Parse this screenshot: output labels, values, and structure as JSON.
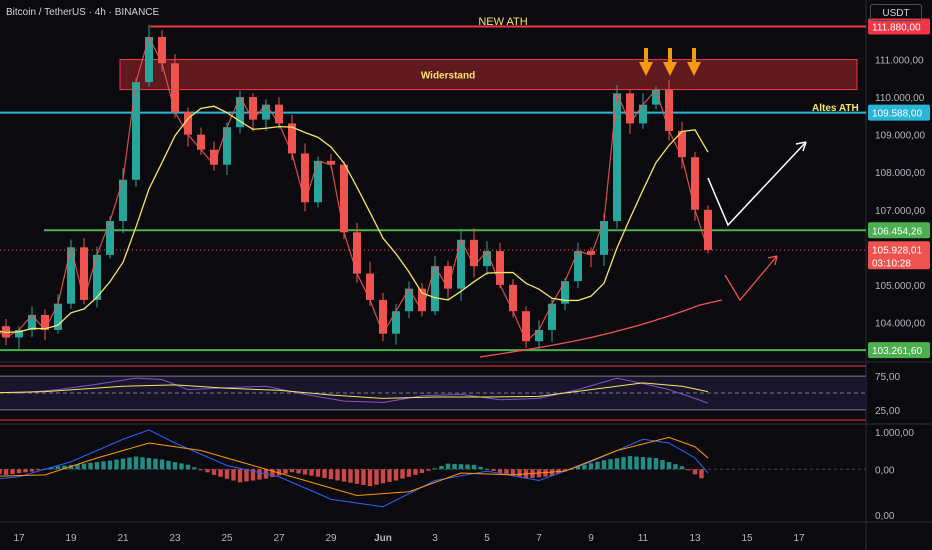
{
  "header": {
    "symbol_title": "Bitcoin / TetherUS · 4h · BINANCE",
    "currency_label": "USDT"
  },
  "annotations": {
    "new_ath": "NEW ATH",
    "resistance_zone": "Widerstand",
    "old_ath": "Altes ATH"
  },
  "colors": {
    "background": "#0b0b0f",
    "bull": "#26a69a",
    "bear": "#ef5350",
    "resistance_line": "#f23645",
    "resistance_zone": "#6e1c22",
    "old_ath_line": "#29b6d6",
    "support_line": "#4caf50",
    "ma_yellow": "#f5e663",
    "ma_red": "#ef5350",
    "arrows_orange": "#f39c12",
    "projection_white": "#ffffff"
  },
  "chart_data": [
    {
      "type": "candlestick",
      "panel": "price",
      "y_axis_ticks": [
        "111.000,00",
        "110.000,00",
        "109.000,00",
        "108.000,00",
        "107.000,00",
        "105.000,00",
        "104.000,00"
      ],
      "ylim": [
        103000,
        112000
      ],
      "x_axis_ticks": [
        "17",
        "19",
        "21",
        "23",
        "25",
        "27",
        "29",
        "Jun",
        "3",
        "5",
        "7",
        "9",
        "11",
        "13",
        "15",
        "17"
      ],
      "price_labels": {
        "new_ath": "111.880,00",
        "old_ath": "109.588,00",
        "support_upper": "106.454,26",
        "last_price": "105.928,01",
        "countdown": "03:10:28",
        "support_lower": "103.261,60"
      },
      "levels": {
        "new_ath": 111880,
        "resistance_zone": [
          110200,
          111000
        ],
        "old_ath": 109588,
        "support_upper": 106454.26,
        "last_price": 105928.01,
        "support_lower": 103261.6
      },
      "close_path": [
        [
          15.5,
          103700
        ],
        [
          16,
          103900
        ],
        [
          16.5,
          103600
        ],
        [
          17,
          103800
        ],
        [
          17.5,
          104200
        ],
        [
          18,
          103800
        ],
        [
          18.5,
          104500
        ],
        [
          19,
          106000
        ],
        [
          19.5,
          104600
        ],
        [
          20,
          105800
        ],
        [
          20.5,
          106700
        ],
        [
          21,
          107800
        ],
        [
          21.5,
          110400
        ],
        [
          22,
          111600
        ],
        [
          22.5,
          110900
        ],
        [
          23,
          109600
        ],
        [
          23.5,
          109000
        ],
        [
          24,
          108600
        ],
        [
          24.5,
          108200
        ],
        [
          25,
          109200
        ],
        [
          25.5,
          110000
        ],
        [
          26,
          109400
        ],
        [
          26.5,
          109800
        ],
        [
          27,
          109300
        ],
        [
          27.5,
          108500
        ],
        [
          28,
          107200
        ],
        [
          28.5,
          108300
        ],
        [
          29,
          108200
        ],
        [
          29.5,
          106400
        ],
        [
          30,
          105300
        ],
        [
          30.5,
          104600
        ],
        [
          31,
          103700
        ],
        [
          31.5,
          104300
        ],
        [
          32,
          104900
        ],
        [
          32.5,
          104300
        ],
        [
          33,
          105500
        ],
        [
          33.5,
          104900
        ],
        [
          34,
          106200
        ],
        [
          34.5,
          105500
        ],
        [
          35,
          105900
        ],
        [
          35.5,
          105000
        ],
        [
          36,
          104300
        ],
        [
          36.5,
          103500
        ],
        [
          37,
          103800
        ],
        [
          37.5,
          104500
        ],
        [
          38,
          105100
        ],
        [
          38.5,
          105900
        ],
        [
          39,
          105800
        ],
        [
          39.5,
          106700
        ],
        [
          40,
          110100
        ],
        [
          40.5,
          109300
        ],
        [
          41,
          109800
        ],
        [
          41.5,
          110200
        ],
        [
          42,
          109100
        ],
        [
          42.5,
          108400
        ],
        [
          43,
          107000
        ],
        [
          43.5,
          105928
        ]
      ],
      "x_range": [
        15.5,
        49
      ]
    },
    {
      "type": "line",
      "panel": "rsi",
      "y_axis_ticks": [
        "75,00",
        "25,00"
      ],
      "ylim": [
        10,
        90
      ],
      "bands": [
        75,
        50,
        25
      ],
      "series": [
        {
          "values": [
            [
              15.5,
              52
            ],
            [
              17,
              50
            ],
            [
              18.5,
              55
            ],
            [
              20,
              63
            ],
            [
              21.5,
              72
            ],
            [
              22.5,
              70
            ],
            [
              23.5,
              55
            ],
            [
              25,
              58
            ],
            [
              26.5,
              60
            ],
            [
              28,
              48
            ],
            [
              29.5,
              38
            ],
            [
              31,
              36
            ],
            [
              32.5,
              46
            ],
            [
              34,
              48
            ],
            [
              35.5,
              40
            ],
            [
              37,
              42
            ],
            [
              38.5,
              55
            ],
            [
              40,
              72
            ],
            [
              41,
              64
            ],
            [
              42,
              55
            ],
            [
              43,
              42
            ],
            [
              43.5,
              35
            ]
          ]
        },
        {
          "values": [
            [
              15.5,
              50
            ],
            [
              18,
              52
            ],
            [
              21,
              60
            ],
            [
              23,
              62
            ],
            [
              25,
              57
            ],
            [
              27,
              54
            ],
            [
              29,
              47
            ],
            [
              31,
              42
            ],
            [
              33,
              44
            ],
            [
              35,
              44
            ],
            [
              37,
              45
            ],
            [
              39,
              55
            ],
            [
              41,
              65
            ],
            [
              42.5,
              60
            ],
            [
              43.5,
              52
            ]
          ]
        }
      ]
    },
    {
      "type": "bar",
      "panel": "macd",
      "y_axis_ticks": [
        "1.000,00",
        "0,00",
        "0,00"
      ],
      "ylim": [
        -1300,
        1100
      ],
      "series": [
        {
          "values": [
            [
              15.5,
              -80
            ],
            [
              16.5,
              -150
            ],
            [
              17.5,
              -60
            ],
            [
              18.5,
              80
            ],
            [
              19.5,
              150
            ],
            [
              20.5,
              230
            ],
            [
              21.5,
              340
            ],
            [
              22.5,
              260
            ],
            [
              23.5,
              120
            ],
            [
              24.5,
              -150
            ],
            [
              25.5,
              -350
            ],
            [
              26.5,
              -250
            ],
            [
              27.5,
              -80
            ],
            [
              28.5,
              -200
            ],
            [
              29.5,
              -330
            ],
            [
              30.5,
              -450
            ],
            [
              31.5,
              -300
            ],
            [
              32.5,
              -100
            ],
            [
              33.5,
              150
            ],
            [
              34.5,
              120
            ],
            [
              35.5,
              -100
            ],
            [
              36.5,
              -250
            ],
            [
              37.5,
              -180
            ],
            [
              38.5,
              80
            ],
            [
              39.5,
              240
            ],
            [
              40.5,
              350
            ],
            [
              41.5,
              300
            ],
            [
              42.5,
              80
            ],
            [
              43.5,
              -350
            ]
          ]
        },
        {
          "values": [
            [
              15.5,
              -300
            ],
            [
              17,
              -200
            ],
            [
              19,
              200
            ],
            [
              21,
              800
            ],
            [
              22,
              1050
            ],
            [
              23,
              700
            ],
            [
              25,
              100
            ],
            [
              27,
              -200
            ],
            [
              29,
              -800
            ],
            [
              31,
              -1000
            ],
            [
              33,
              -300
            ],
            [
              35,
              -50
            ],
            [
              37,
              -300
            ],
            [
              39,
              200
            ],
            [
              41,
              800
            ],
            [
              42,
              700
            ],
            [
              43,
              300
            ],
            [
              43.5,
              -100
            ]
          ]
        },
        {
          "values": [
            [
              15.5,
              -200
            ],
            [
              18,
              -150
            ],
            [
              20,
              300
            ],
            [
              22,
              700
            ],
            [
              24,
              500
            ],
            [
              26,
              100
            ],
            [
              28,
              -300
            ],
            [
              30,
              -700
            ],
            [
              32,
              -600
            ],
            [
              34,
              -100
            ],
            [
              36,
              -150
            ],
            [
              38,
              -50
            ],
            [
              40,
              500
            ],
            [
              42,
              850
            ],
            [
              43,
              600
            ],
            [
              43.5,
              300
            ]
          ]
        }
      ]
    }
  ]
}
